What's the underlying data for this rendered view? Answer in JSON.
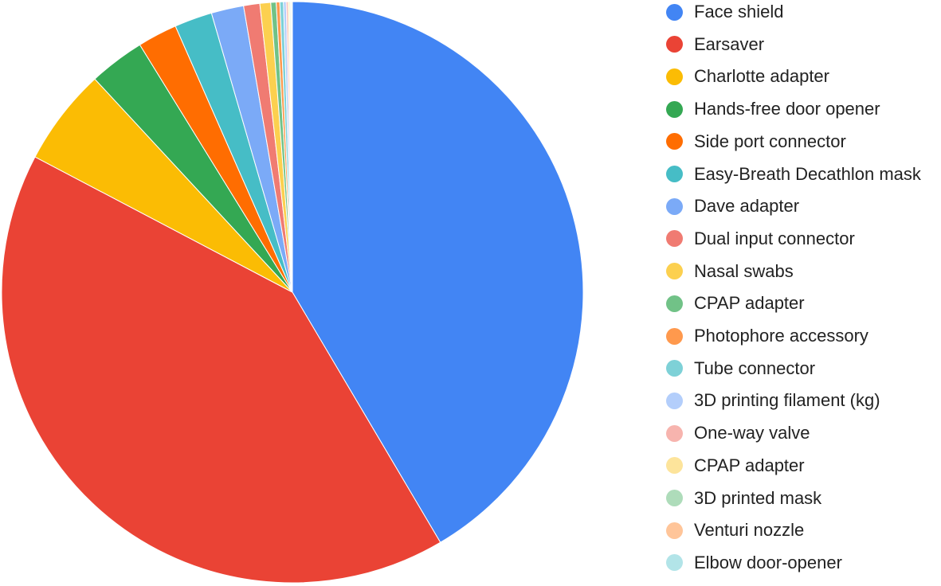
{
  "chart_data": {
    "type": "pie",
    "title": "",
    "legend_position": "right",
    "slices": [
      {
        "label": "Face shield",
        "value": 41.5,
        "color": "#4285F4"
      },
      {
        "label": "Earsaver",
        "value": 41.2,
        "color": "#EA4335"
      },
      {
        "label": "Charlotte adapter",
        "value": 5.4,
        "color": "#FBBC04"
      },
      {
        "label": "Hands-free door opener",
        "value": 3.1,
        "color": "#34A853"
      },
      {
        "label": "Side port connector",
        "value": 2.2,
        "color": "#FF6D01"
      },
      {
        "label": "Easy-Breath Decathlon mask",
        "value": 2.1,
        "color": "#46BDC6"
      },
      {
        "label": "Dave adapter",
        "value": 1.8,
        "color": "#7BAAF7"
      },
      {
        "label": "Dual input connector",
        "value": 0.9,
        "color": "#F07B72"
      },
      {
        "label": "Nasal swabs",
        "value": 0.6,
        "color": "#FCD04F"
      },
      {
        "label": "CPAP adapter",
        "value": 0.3,
        "color": "#71C287"
      },
      {
        "label": "Photophore accessory",
        "value": 0.2,
        "color": "#FF994D"
      },
      {
        "label": "Tube connector",
        "value": 0.2,
        "color": "#7ED1D7"
      },
      {
        "label": "3D printing filament (kg)",
        "value": 0.15,
        "color": "#B3CEFB"
      },
      {
        "label": "One-way valve",
        "value": 0.1,
        "color": "#F7B4AE"
      },
      {
        "label": "CPAP adapter",
        "value": 0.08,
        "color": "#FDE49B"
      },
      {
        "label": "3D printed mask",
        "value": 0.06,
        "color": "#AEDCBA"
      },
      {
        "label": "Venturi nozzle",
        "value": 0.05,
        "color": "#FFC599"
      },
      {
        "label": "Elbow door-opener",
        "value": 0.05,
        "color": "#B2E4E8"
      }
    ]
  }
}
